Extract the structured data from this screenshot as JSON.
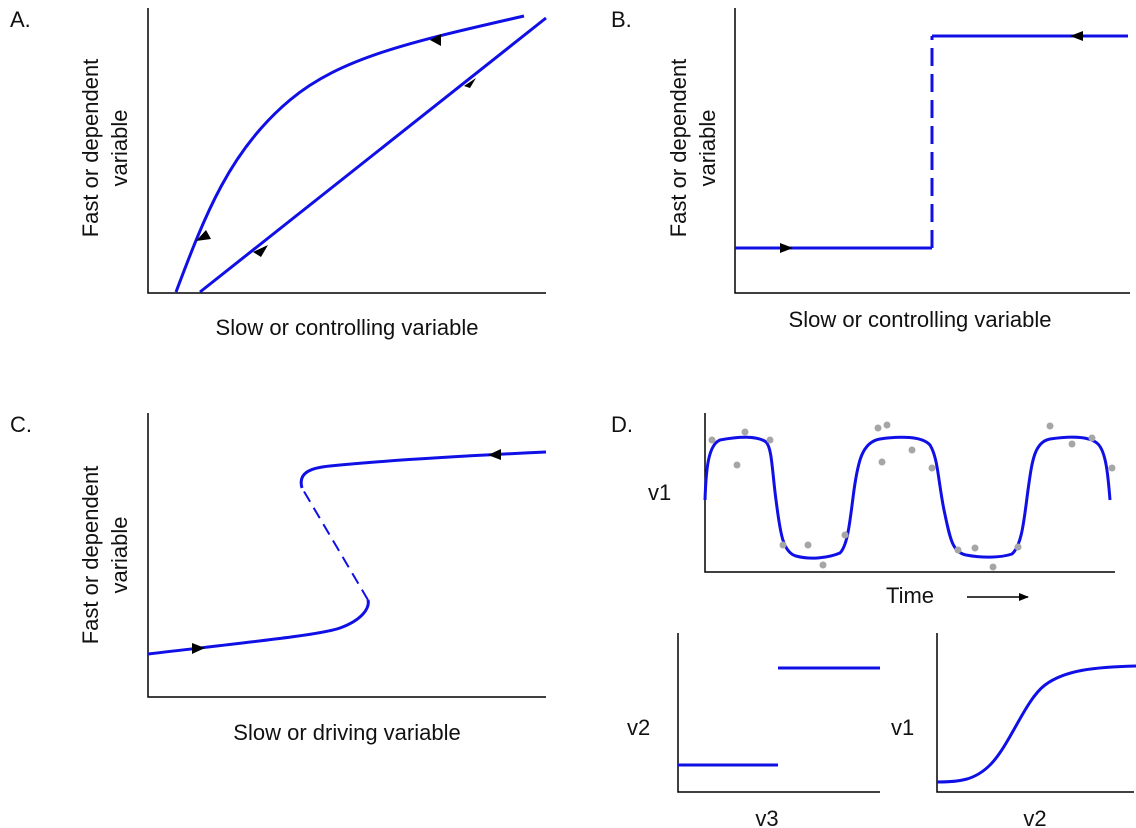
{
  "colors": {
    "curve": "#1010e6",
    "axis": "#000000",
    "dots": "#a6a6a6",
    "arrow": "#000000",
    "background": "#ffffff"
  },
  "panels": {
    "a": {
      "letter": "A.",
      "ylabel_line1": "Fast or dependent",
      "ylabel_line2": "variable",
      "xlabel": "Slow or controlling variable"
    },
    "b": {
      "letter": "B.",
      "ylabel_line1": "Fast or dependent",
      "ylabel_line2": "variable",
      "xlabel": "Slow or controlling variable"
    },
    "c": {
      "letter": "C.",
      "ylabel_line1": "Fast or dependent",
      "ylabel_line2": "variable",
      "xlabel": "Slow or driving variable"
    },
    "d": {
      "letter": "D.",
      "time_plot": {
        "ylabel": "v1",
        "xlabel": "Time"
      },
      "step_plot": {
        "ylabel": "v2",
        "xlabel": "v3"
      },
      "sigmoid_plot": {
        "ylabel": "v1",
        "xlabel": "v2"
      }
    }
  }
}
